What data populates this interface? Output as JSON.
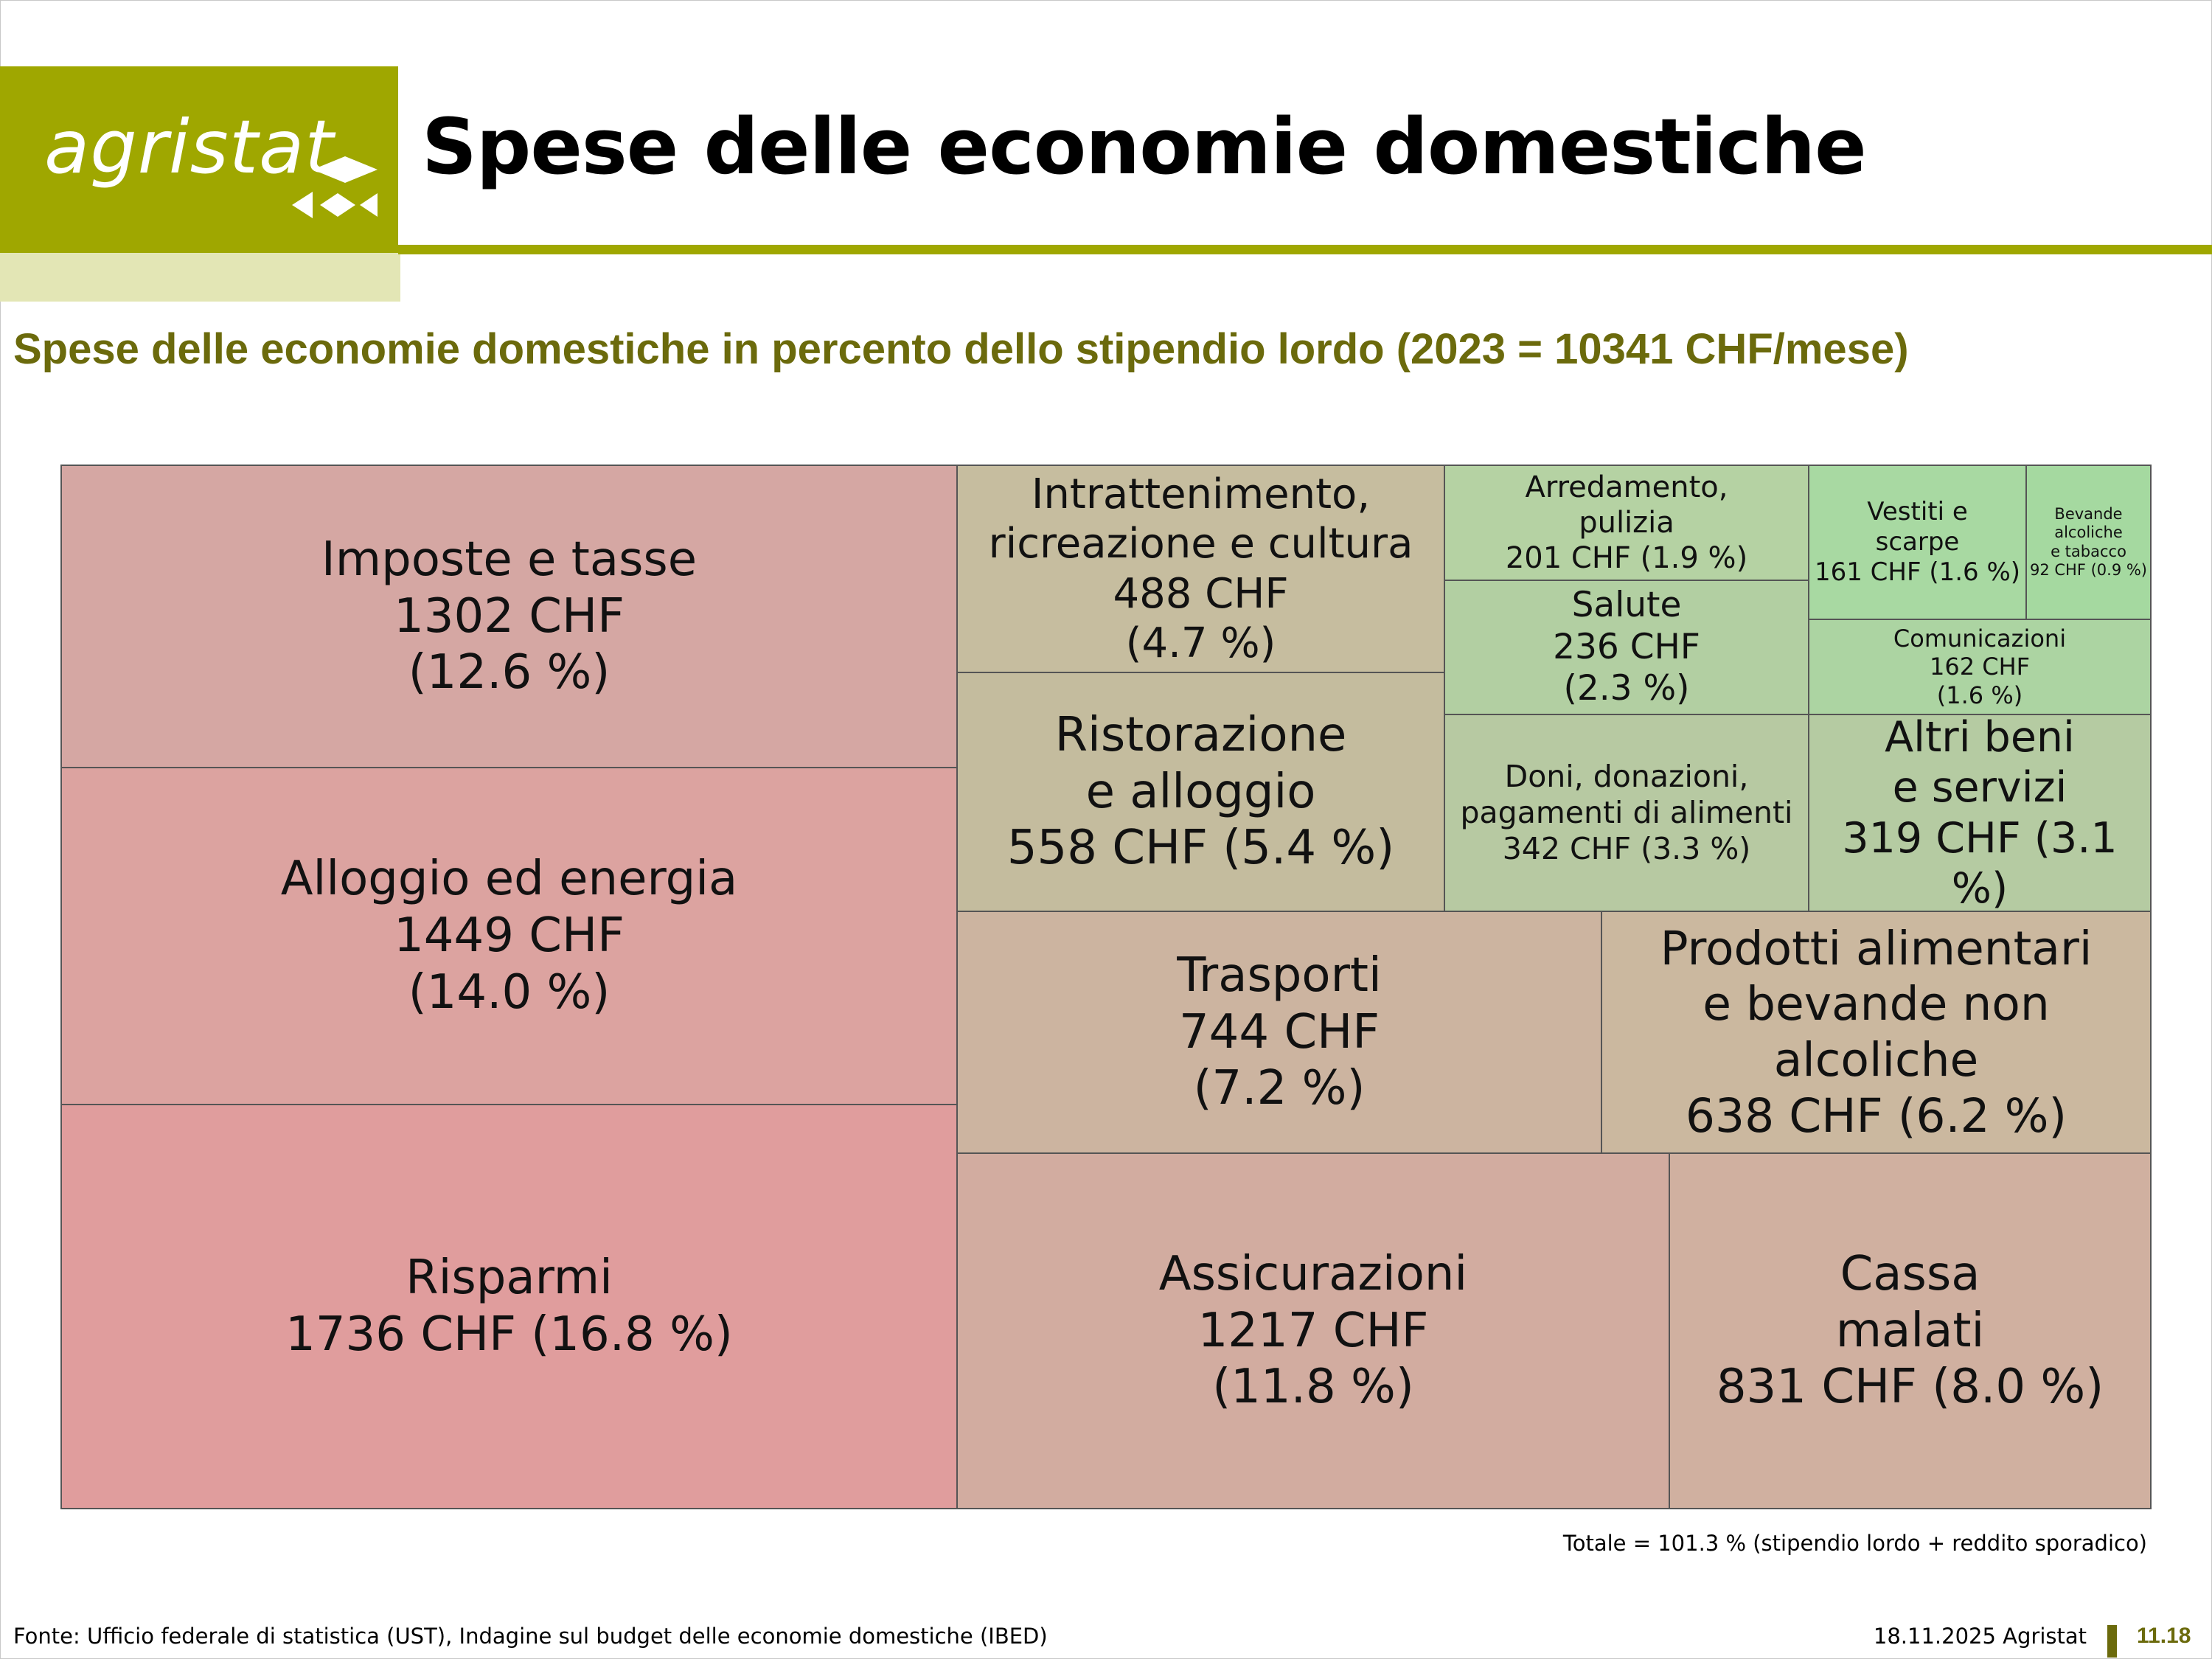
{
  "header": {
    "logo_text": "agristat",
    "title": "Spese delle economie domestiche"
  },
  "subtitle": "Spese delle economie domestiche in percento dello stipendio lordo (2023 = 10341 CHF/mese)",
  "chart_data": {
    "type": "treemap",
    "title": "Spese delle economie domestiche in percento dello stipendio lordo (2023 = 10341 CHF/mese)",
    "unit": "CHF/mese",
    "total_monthly_gross_salary_chf": 10341,
    "cells": [
      {
        "id": "imposte",
        "name": "Imposte e tasse",
        "value_chf": 1302,
        "percent": 12.6,
        "color": "#d5a7a3",
        "lines": [
          "Imposte e tasse",
          "1302 CHF",
          "(12.6 %)"
        ]
      },
      {
        "id": "alloggio",
        "name": "Alloggio ed energia",
        "value_chf": 1449,
        "percent": 14.0,
        "color": "#dca3a0",
        "lines": [
          "Alloggio ed energia",
          "1449 CHF",
          "(14.0 %)"
        ]
      },
      {
        "id": "risparmi",
        "name": "Risparmi",
        "value_chf": 1736,
        "percent": 16.8,
        "color": "#e09d9d",
        "lines": [
          "Risparmi",
          "1736 CHF (16.8 %)"
        ]
      },
      {
        "id": "intrattenimento",
        "name": "Intrattenimento, ricreazione e cultura",
        "value_chf": 488,
        "percent": 4.7,
        "color": "#c6bd9f",
        "lines": [
          "Intrattenimento,",
          "ricreazione e cultura",
          "488 CHF",
          "(4.7 %)"
        ]
      },
      {
        "id": "ristorazione",
        "name": "Ristorazione e alloggio",
        "value_chf": 558,
        "percent": 5.4,
        "color": "#c4bc9e",
        "lines": [
          "Ristorazione",
          "e alloggio",
          "558 CHF (5.4 %)"
        ]
      },
      {
        "id": "arredamento",
        "name": "Arredamento, pulizia",
        "value_chf": 201,
        "percent": 1.9,
        "color": "#b5d2a3",
        "lines": [
          "Arredamento,",
          "pulizia",
          "201 CHF (1.9 %)"
        ]
      },
      {
        "id": "vestiti",
        "name": "Vestiti e scarpe",
        "value_chf": 161,
        "percent": 1.6,
        "color": "#a8d9a2",
        "lines": [
          "Vestiti e",
          "scarpe",
          "161 CHF (1.6 %)"
        ]
      },
      {
        "id": "bevande",
        "name": "Bevande alcoliche e tabacco",
        "value_chf": 92,
        "percent": 0.9,
        "color": "#a5d9a0",
        "lines": [
          "Bevande",
          "alcoliche",
          "e tabacco",
          "92 CHF (0.9 %)"
        ]
      },
      {
        "id": "salute",
        "name": "Salute",
        "value_chf": 236,
        "percent": 2.3,
        "color": "#b2cfa2",
        "lines": [
          "Salute",
          "236 CHF",
          "(2.3 %)"
        ]
      },
      {
        "id": "comunicazioni",
        "name": "Comunicazioni",
        "value_chf": 162,
        "percent": 1.6,
        "color": "#acd4a2",
        "lines": [
          "Comunicazioni",
          "162 CHF",
          "(1.6 %)"
        ]
      },
      {
        "id": "doni",
        "name": "Doni, donazioni, pagamenti di alimenti",
        "value_chf": 342,
        "percent": 3.3,
        "color": "#b7c9a2",
        "lines": [
          "Doni, donazioni,",
          "pagamenti di alimenti",
          "342 CHF (3.3 %)"
        ]
      },
      {
        "id": "altri",
        "name": "Altri beni e servizi",
        "value_chf": 319,
        "percent": 3.1,
        "color": "#b5cba2",
        "lines": [
          "Altri beni",
          "e servizi",
          "319 CHF (3.1 %)"
        ]
      },
      {
        "id": "trasporti",
        "name": "Trasporti",
        "value_chf": 744,
        "percent": 7.2,
        "color": "#ccb4a0",
        "lines": [
          "Trasporti",
          "744 CHF",
          "(7.2 %)"
        ]
      },
      {
        "id": "prodotti",
        "name": "Prodotti alimentari e bevande non alcoliche",
        "value_chf": 638,
        "percent": 6.2,
        "color": "#cbb89f",
        "lines": [
          "Prodotti alimentari",
          "e bevande non",
          "alcoliche",
          "638 CHF (6.2 %)"
        ]
      },
      {
        "id": "assicurazioni",
        "name": "Assicurazioni",
        "value_chf": 1217,
        "percent": 11.8,
        "color": "#d2aca0",
        "lines": [
          "Assicurazioni",
          "1217 CHF",
          "(11.8 %)"
        ]
      },
      {
        "id": "cassa",
        "name": "Cassa malati",
        "value_chf": 831,
        "percent": 8.0,
        "color": "#d0b0a0",
        "lines": [
          "Cassa",
          "malati",
          "831 CHF (8.0 %)"
        ]
      }
    ]
  },
  "note": "Totale = 101.3 % (stipendio lordo + reddito sporadico)",
  "footer": {
    "source": "Fonte: Ufficio federale di statistica (UST), Indagine sul budget delle economie domestiche (IBED)",
    "date": "18.11.2025 Agristat",
    "page": "11.18"
  }
}
